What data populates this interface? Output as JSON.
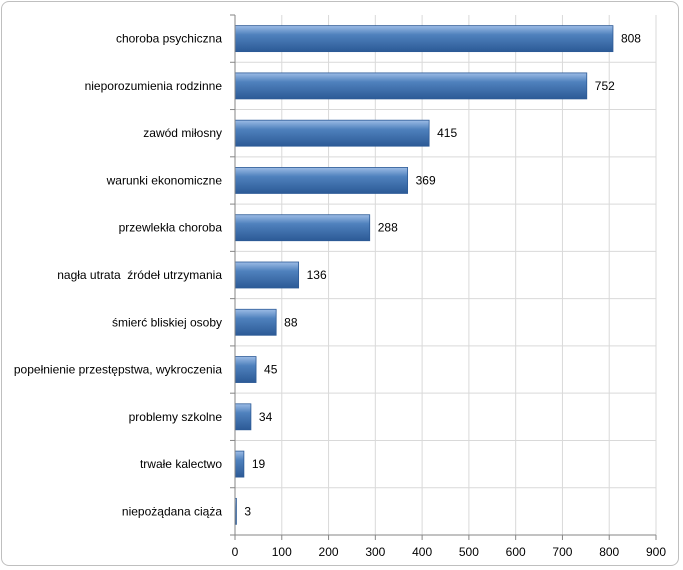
{
  "chart_data": {
    "type": "bar",
    "orientation": "horizontal",
    "categories": [
      "choroba psychiczna",
      "nieporozumienia rodzinne",
      "zawód miłosny",
      "warunki ekonomiczne",
      "przewlekła choroba",
      "nagła utrata  źródeł utrzymania",
      "śmierć bliskiej osoby",
      "popełnienie przestępstwa, wykroczenia",
      "problemy szkolne",
      "trwałe kalectwo",
      "niepożądana ciąża"
    ],
    "values": [
      808,
      752,
      415,
      369,
      288,
      136,
      88,
      45,
      34,
      19,
      3
    ],
    "value_labels": [
      "808",
      "752",
      "415",
      "369",
      "288",
      "136",
      "88",
      "45",
      "34",
      "19",
      "3"
    ],
    "xlim": [
      0,
      900
    ],
    "x_ticks": [
      0,
      100,
      200,
      300,
      400,
      500,
      600,
      700,
      800,
      900
    ],
    "x_tick_labels": [
      "0",
      "100",
      "200",
      "300",
      "400",
      "500",
      "600",
      "700",
      "800",
      "900"
    ],
    "grid": "vertical major gridlines",
    "legend": "none",
    "bar_color": "#4f81bd",
    "bar_color_dark": "#2c5a96",
    "bar_color_light": "#9dbce6",
    "grid_color": "#d9d9d9",
    "axis_color": "#868686"
  }
}
